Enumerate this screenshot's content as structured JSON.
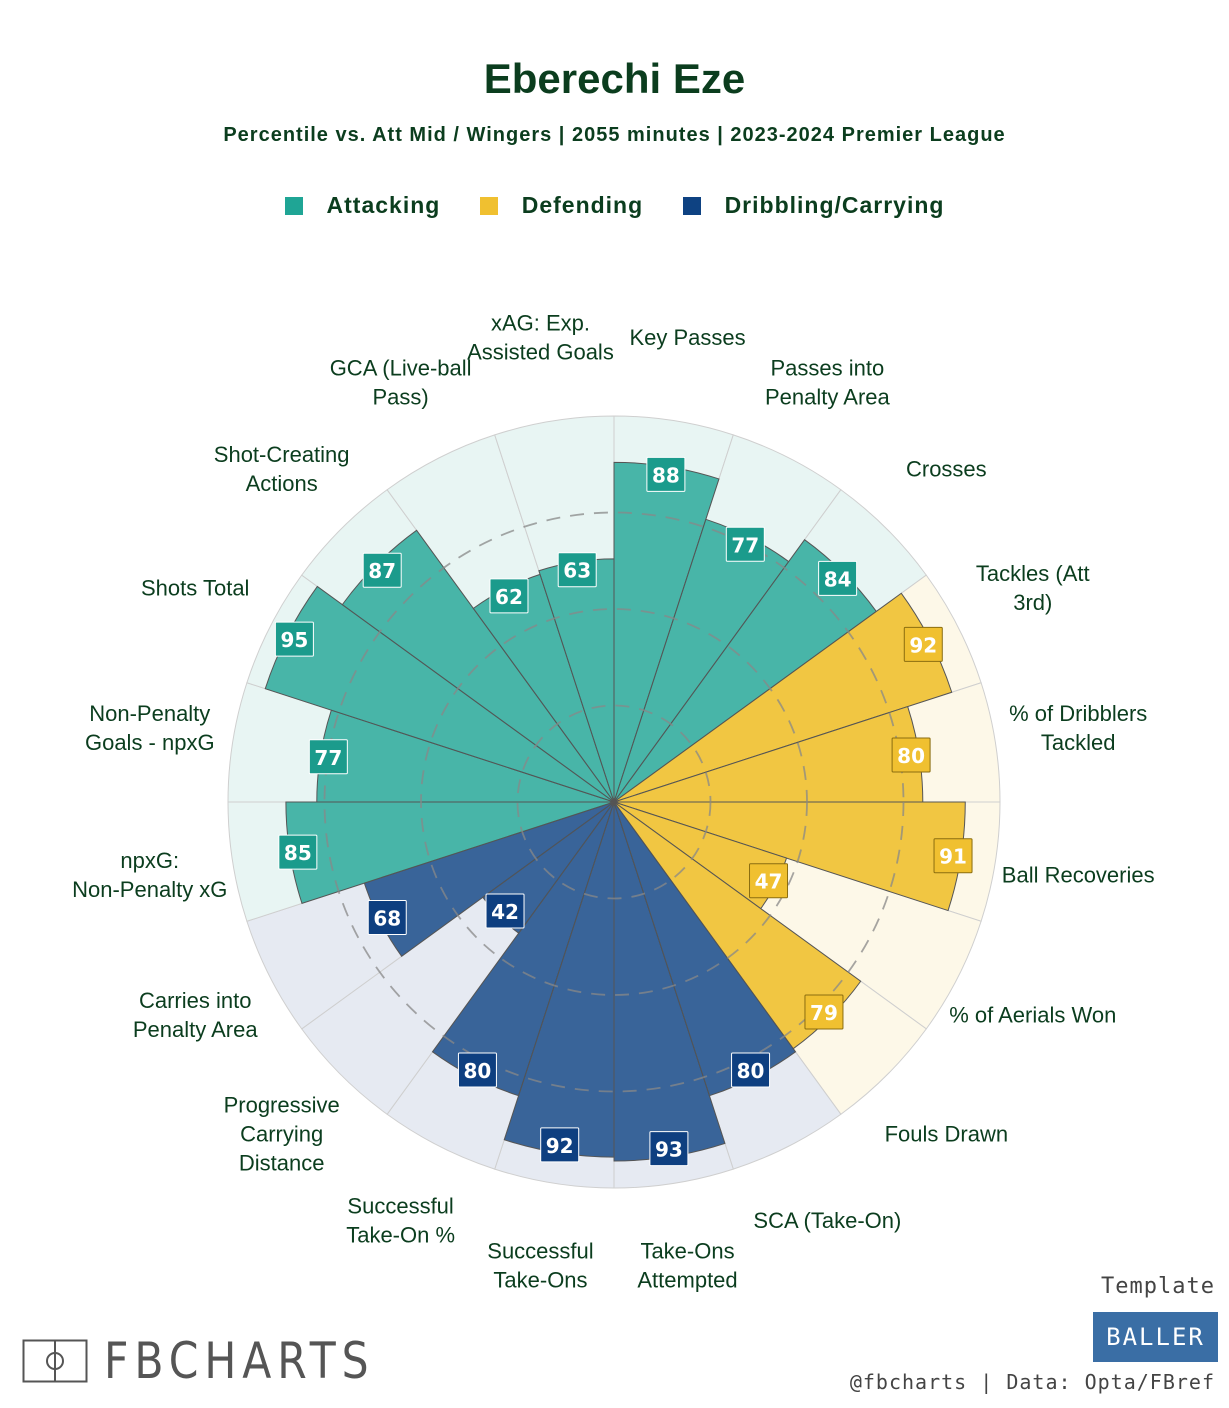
{
  "chart_data": {
    "type": "radial-bar",
    "title": "Eberechi Eze",
    "subtitle": "Percentile vs. Att Mid / Wingers | 2055 minutes | 2023-2024 Premier League",
    "rlim": [
      0,
      100
    ],
    "grid": true,
    "legend": [
      {
        "name": "Attacking",
        "color": "#1fa595"
      },
      {
        "name": "Defending",
        "color": "#f0c030"
      },
      {
        "name": "Dribbling/Carrying",
        "color": "#0e4282"
      }
    ],
    "slices": [
      {
        "label": "Key Passes",
        "value": 88,
        "group": "Attacking"
      },
      {
        "label": "Passes into Penalty Area",
        "value": 77,
        "group": "Attacking"
      },
      {
        "label": "Crosses",
        "value": 84,
        "group": "Attacking"
      },
      {
        "label": "Tackles (Att 3rd)",
        "value": 92,
        "group": "Defending"
      },
      {
        "label": "% of Dribblers Tackled",
        "value": 80,
        "group": "Defending"
      },
      {
        "label": "Ball Recoveries",
        "value": 91,
        "group": "Defending"
      },
      {
        "label": "% of Aerials Won",
        "value": 47,
        "group": "Defending"
      },
      {
        "label": "Fouls Drawn",
        "value": 79,
        "group": "Defending"
      },
      {
        "label": "SCA (Take-On)",
        "value": 80,
        "group": "Dribbling/Carrying"
      },
      {
        "label": "Take-Ons Attempted",
        "value": 93,
        "group": "Dribbling/Carrying"
      },
      {
        "label": "Successful Take-Ons",
        "value": 92,
        "group": "Dribbling/Carrying"
      },
      {
        "label": "Successful Take-On %",
        "value": 80,
        "group": "Dribbling/Carrying"
      },
      {
        "label": "Progressive Carrying Distance",
        "value": 42,
        "group": "Dribbling/Carrying"
      },
      {
        "label": "Carries into Penalty Area",
        "value": 68,
        "group": "Dribbling/Carrying"
      },
      {
        "label": "npxG: Non-Penalty xG",
        "value": 85,
        "group": "Attacking"
      },
      {
        "label": "Non-Penalty Goals - npxG",
        "value": 77,
        "group": "Attacking"
      },
      {
        "label": "Shots Total",
        "value": 95,
        "group": "Attacking"
      },
      {
        "label": "Shot-Creating Actions",
        "value": 87,
        "group": "Attacking"
      },
      {
        "label": "GCA (Live-ball Pass)",
        "value": 62,
        "group": "Attacking"
      },
      {
        "label": "xAG: Exp. Assisted Goals",
        "value": 63,
        "group": "Attacking"
      }
    ]
  },
  "colors": {
    "title": "#0b3d1e",
    "Attacking_fill": "#1fa595",
    "Attacking_bg": "#e8f5f3",
    "Attacking_box": "#1b9b8c",
    "Defending_fill": "#f0c030",
    "Defending_bg": "#fdf8e8",
    "Defending_box": "#f0c030",
    "Dribbling/Carrying_fill": "#0e4282",
    "Dribbling/Carrying_bg": "#e6eaf2",
    "Dribbling/Carrying_box": "#0e3f80"
  },
  "branding": {
    "logo_text": "FBCHARTS",
    "template_label": "Template",
    "template_name": "BALLER",
    "credits": "@fbcharts | Data: Opta/FBref"
  }
}
